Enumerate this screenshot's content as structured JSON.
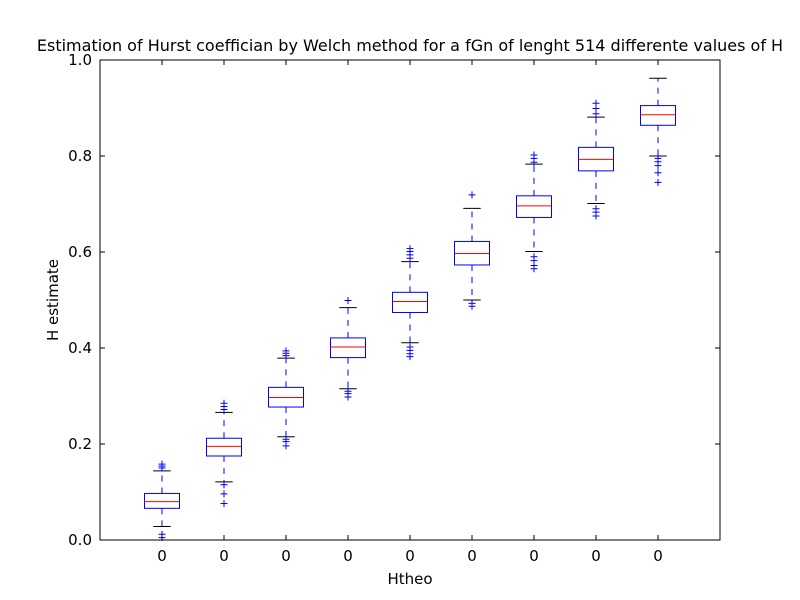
{
  "chart_data": {
    "type": "box",
    "title": "Estimation of Hurst coeffician by Welch method for a fGn of lenght 514 differente values of H",
    "xlabel": "Htheo",
    "ylabel": "H estimate",
    "ylim": [
      0.0,
      1.0
    ],
    "yticks": [
      "0.0",
      "0.2",
      "0.4",
      "0.6",
      "0.8",
      "1.0"
    ],
    "yticks_values": [
      0.0,
      0.2,
      0.4,
      0.6,
      0.8,
      1.0
    ],
    "categories": [
      "0",
      "0",
      "0",
      "0",
      "0",
      "0",
      "0",
      "0",
      "0"
    ],
    "grid": false,
    "colors": {
      "box": "#0000ff",
      "median": "#ff0000",
      "cap": "#000000",
      "flier": "#0000ff"
    },
    "boxes": [
      {
        "whislo": 0.028,
        "q1": 0.066,
        "med": 0.08,
        "q3": 0.097,
        "whishi": 0.144,
        "fliers": [
          0.005,
          0.012,
          0.15,
          0.154,
          0.158
        ]
      },
      {
        "whislo": 0.121,
        "q1": 0.175,
        "med": 0.195,
        "q3": 0.212,
        "whishi": 0.266,
        "fliers": [
          0.076,
          0.096,
          0.115,
          0.272,
          0.278,
          0.285
        ]
      },
      {
        "whislo": 0.215,
        "q1": 0.277,
        "med": 0.297,
        "q3": 0.318,
        "whishi": 0.379,
        "fliers": [
          0.196,
          0.205,
          0.21,
          0.384,
          0.389,
          0.394
        ]
      },
      {
        "whislo": 0.315,
        "q1": 0.38,
        "med": 0.402,
        "q3": 0.421,
        "whishi": 0.484,
        "fliers": [
          0.298,
          0.305,
          0.31,
          0.499
        ]
      },
      {
        "whislo": 0.411,
        "q1": 0.474,
        "med": 0.497,
        "q3": 0.516,
        "whishi": 0.58,
        "fliers": [
          0.382,
          0.388,
          0.395,
          0.402,
          0.587,
          0.594,
          0.601,
          0.607
        ]
      },
      {
        "whislo": 0.5,
        "q1": 0.573,
        "med": 0.597,
        "q3": 0.622,
        "whishi": 0.691,
        "fliers": [
          0.487,
          0.493,
          0.719
        ]
      },
      {
        "whislo": 0.601,
        "q1": 0.672,
        "med": 0.696,
        "q3": 0.717,
        "whishi": 0.783,
        "fliers": [
          0.565,
          0.572,
          0.582,
          0.59,
          0.787,
          0.795,
          0.802
        ]
      },
      {
        "whislo": 0.701,
        "q1": 0.769,
        "med": 0.793,
        "q3": 0.818,
        "whishi": 0.881,
        "fliers": [
          0.675,
          0.683,
          0.69,
          0.888,
          0.899,
          0.91
        ]
      },
      {
        "whislo": 0.8,
        "q1": 0.864,
        "med": 0.886,
        "q3": 0.905,
        "whishi": 0.962,
        "fliers": [
          0.745,
          0.765,
          0.78,
          0.788,
          0.795
        ]
      }
    ]
  }
}
